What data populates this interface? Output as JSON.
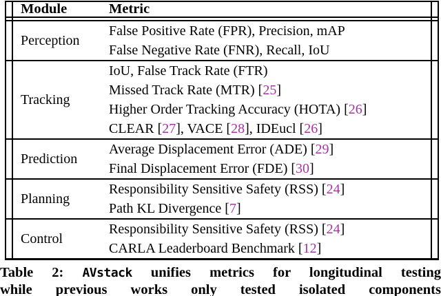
{
  "table": {
    "header": {
      "module": "Module",
      "metric": "Metric"
    },
    "rows": [
      {
        "module": "Perception",
        "lines": [
          [
            "False Positive Rate (FPR), Precision, mAP"
          ],
          [
            "False Negative Rate (FNR), Recall, IoU"
          ]
        ]
      },
      {
        "module": "Tracking",
        "lines": [
          [
            "IoU, False Track Rate (FTR)"
          ],
          [
            "Missed Track Rate (MTR) ",
            {
              "cite": "25"
            }
          ],
          [
            "Higher Order Tracking Accuracy (HOTA) ",
            {
              "cite": "26"
            }
          ],
          [
            "CLEAR ",
            {
              "cite": "27"
            },
            ", VACE ",
            {
              "cite": "28"
            },
            ", IDEucl ",
            {
              "cite": "26"
            }
          ]
        ]
      },
      {
        "module": "Prediction",
        "lines": [
          [
            "Average Displacement Error (ADE) ",
            {
              "cite": "29"
            }
          ],
          [
            "Final Displacement Error (FDE) ",
            {
              "cite": "30"
            }
          ]
        ]
      },
      {
        "module": "Planning",
        "lines": [
          [
            "Responsibility Sensitive Safety (RSS) ",
            {
              "cite": "24"
            }
          ],
          [
            "Path KL Divergence ",
            {
              "cite": "7"
            }
          ]
        ]
      },
      {
        "module": "Control",
        "lines": [
          [
            "Responsibility Sensitive Safety (RSS) ",
            {
              "cite": "24"
            }
          ],
          [
            "CARLA Leaderboard Benchmark ",
            {
              "cite": "12"
            }
          ]
        ]
      }
    ]
  },
  "caption": {
    "label": "Table 2:",
    "tt": "AVstack",
    "line1_rest": "unifies metrics for longitudinal testing",
    "line2": "while previous works only tested isolated components"
  },
  "colors": {
    "citation": "#A235A2",
    "text": "#000000",
    "background": "#ffffff"
  }
}
